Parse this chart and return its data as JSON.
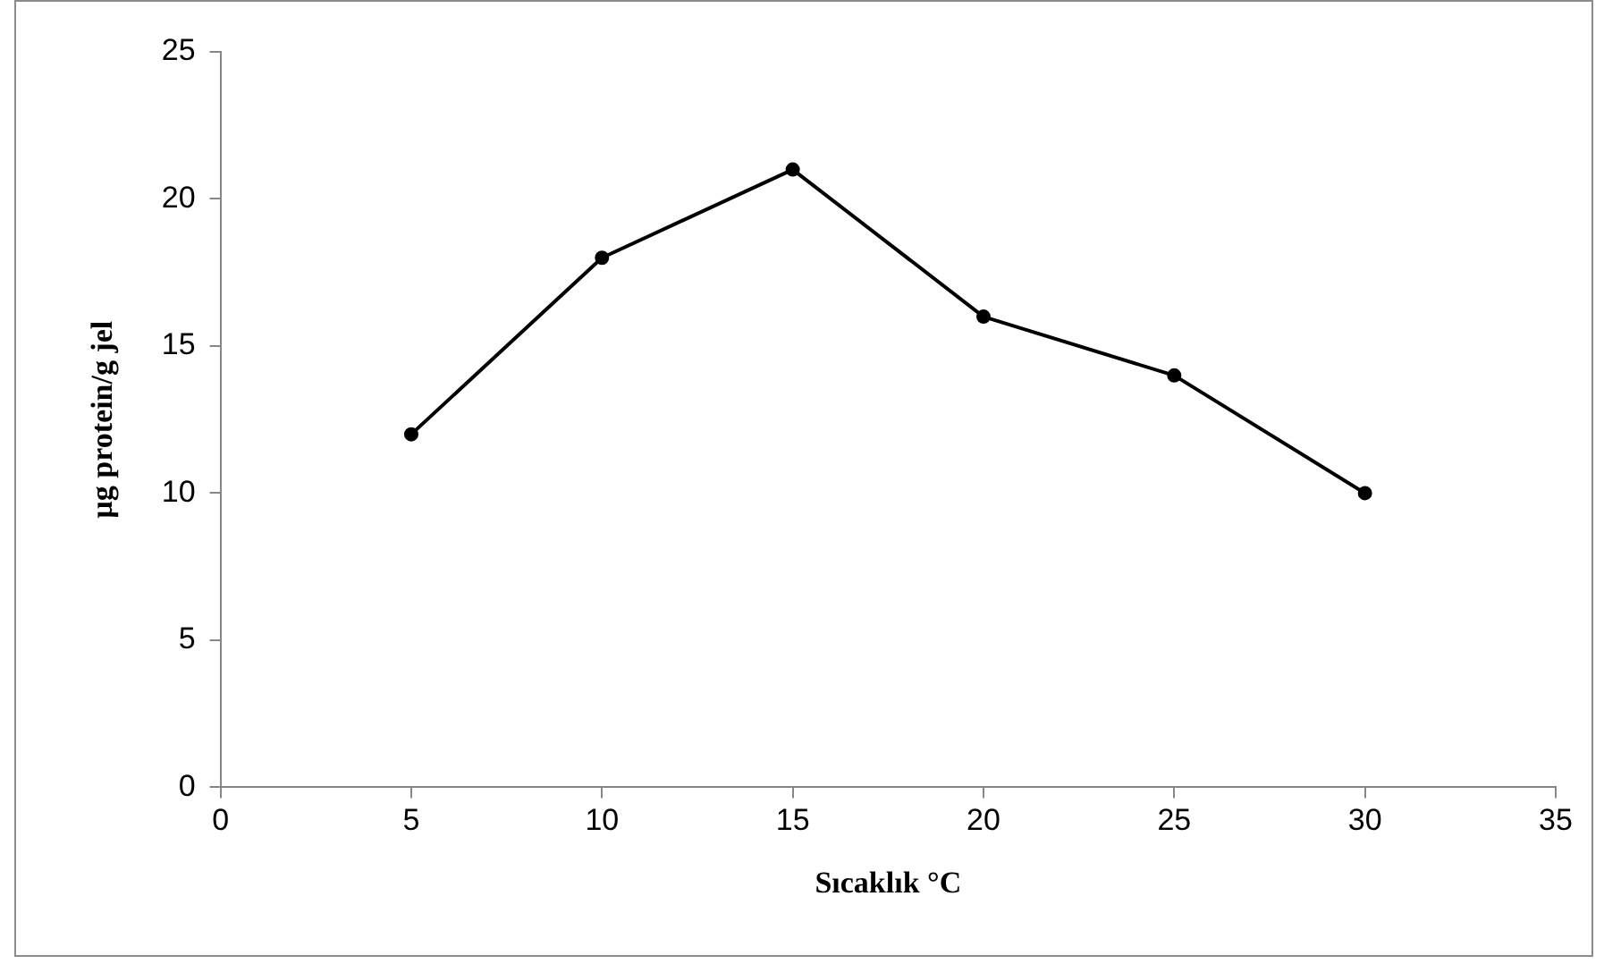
{
  "chart_data": {
    "type": "line",
    "xlabel": "Sıcaklık °C",
    "ylabel": "µg protein/g jel",
    "x": [
      5,
      10,
      15,
      20,
      25,
      30
    ],
    "series": [
      {
        "color": "#000000",
        "values": [
          12,
          18,
          21,
          16,
          14,
          10
        ]
      }
    ],
    "xlim": [
      0,
      35
    ],
    "xticks": [
      0,
      5,
      10,
      15,
      20,
      25,
      30,
      35
    ],
    "ylim": [
      0,
      25
    ],
    "yticks": [
      0,
      5,
      10,
      15,
      20,
      25
    ],
    "marker": "circle",
    "line_style": "solid",
    "legend": false
  }
}
